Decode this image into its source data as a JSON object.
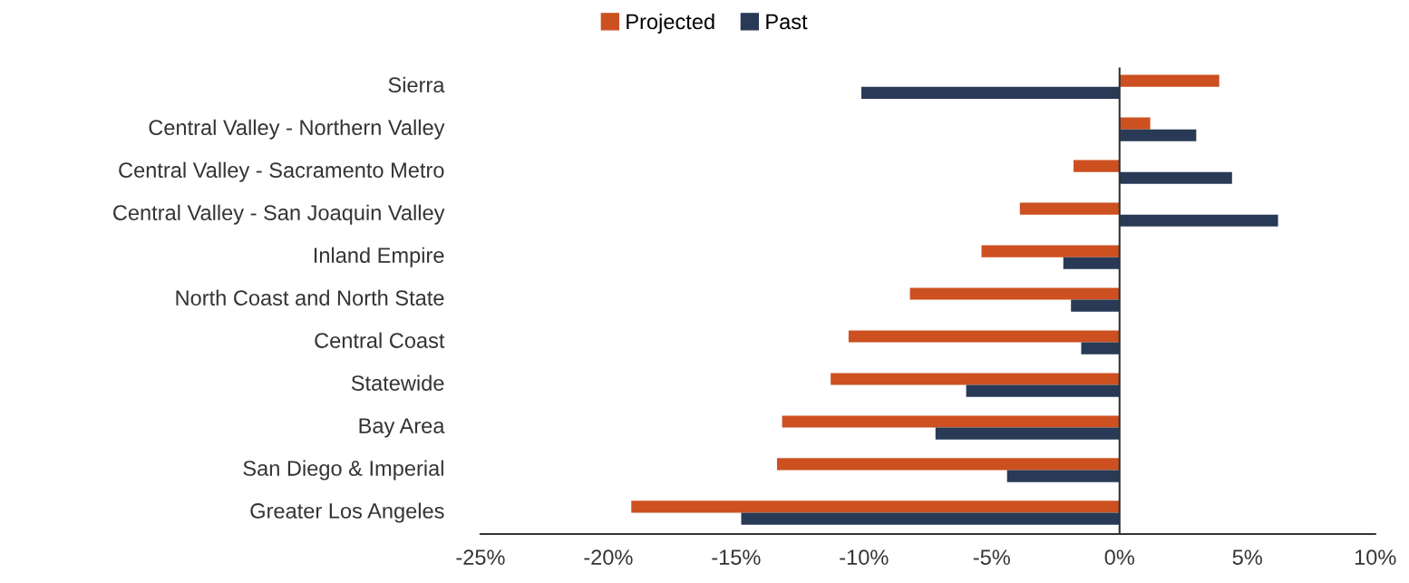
{
  "chart_data": {
    "type": "bar",
    "orientation": "horizontal",
    "categories": [
      "Sierra",
      "Central Valley - Northern Valley",
      "Central Valley - Sacramento Metro",
      "Central Valley - San Joaquin Valley",
      "Inland Empire",
      "North Coast and North State",
      "Central Coast",
      "Statewide",
      "Bay Area",
      "San Diego & Imperial",
      "Greater Los Angeles"
    ],
    "series": [
      {
        "name": "Projected",
        "color": "#cc5020",
        "values": [
          3.9,
          1.2,
          -1.8,
          -3.9,
          -5.4,
          -8.2,
          -10.6,
          -11.3,
          -13.2,
          -13.4,
          -19.1
        ]
      },
      {
        "name": "Past",
        "color": "#283a56",
        "values": [
          -10.1,
          3.0,
          4.4,
          6.2,
          -2.2,
          -1.9,
          -1.5,
          -6.0,
          -7.2,
          -4.4,
          -14.8
        ]
      }
    ],
    "xlim": [
      -25,
      10
    ],
    "xticks": [
      {
        "value": -25,
        "label": "-25%"
      },
      {
        "value": -20,
        "label": "-20%"
      },
      {
        "value": -15,
        "label": "-15%"
      },
      {
        "value": -10,
        "label": "-10%"
      },
      {
        "value": -5,
        "label": "-5%"
      },
      {
        "value": 0,
        "label": "0%"
      },
      {
        "value": 5,
        "label": "5%"
      },
      {
        "value": 10,
        "label": "10%"
      }
    ],
    "ref_lines": [
      {
        "axis": "x",
        "value": 0,
        "color": "#333333"
      }
    ],
    "legend": "top"
  }
}
